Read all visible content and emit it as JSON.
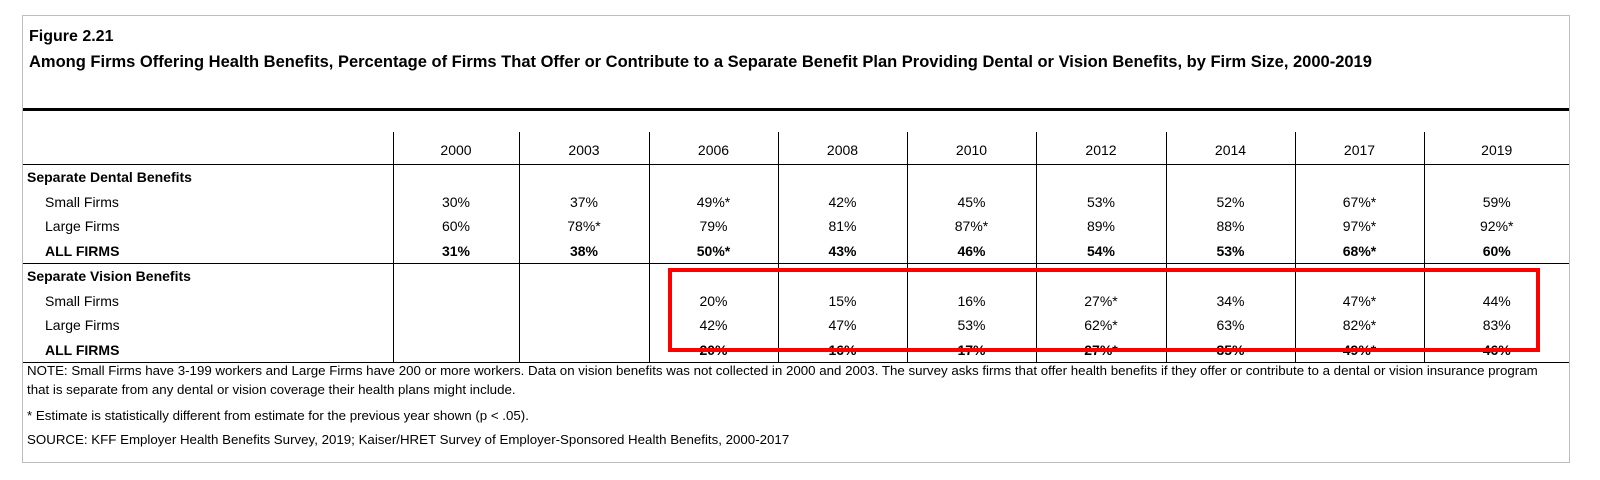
{
  "figure": {
    "label": "Figure 2.21",
    "title": "Among Firms Offering Health Benefits, Percentage of Firms That Offer or Contribute to a Separate Benefit Plan Providing Dental or Vision Benefits, by Firm Size, 2000-2019"
  },
  "table": {
    "years": [
      "2000",
      "2003",
      "2006",
      "2008",
      "2010",
      "2012",
      "2014",
      "2017",
      "2019"
    ],
    "dental": {
      "heading": "Separate Dental Benefits",
      "rows": [
        {
          "label": "Small Firms",
          "values": [
            "30%",
            "37%",
            "49%*",
            "42%",
            "45%",
            "53%",
            "52%",
            "67%*",
            "59%"
          ]
        },
        {
          "label": "Large Firms",
          "values": [
            "60%",
            "78%*",
            "79%",
            "81%",
            "87%*",
            "89%",
            "88%",
            "97%*",
            "92%*"
          ]
        },
        {
          "label": "ALL FIRMS",
          "values": [
            "31%",
            "38%",
            "50%*",
            "43%",
            "46%",
            "54%",
            "53%",
            "68%*",
            "60%"
          ]
        }
      ]
    },
    "vision": {
      "heading": "Separate Vision Benefits",
      "rows": [
        {
          "label": "Small Firms",
          "values": [
            "",
            "",
            "20%",
            "15%",
            "16%",
            "27%*",
            "34%",
            "47%*",
            "44%"
          ]
        },
        {
          "label": "Large Firms",
          "values": [
            "",
            "",
            "42%",
            "47%",
            "53%",
            "62%*",
            "63%",
            "82%*",
            "83%"
          ]
        },
        {
          "label": "ALL FIRMS",
          "values": [
            "",
            "",
            "20%",
            "16%",
            "17%",
            "27%*",
            "35%",
            "49%*",
            "46%"
          ]
        }
      ]
    }
  },
  "notes": {
    "note": "NOTE: Small Firms have 3-199 workers and Large Firms have 200 or more workers. Data on vision benefits was not collected in 2000 and 2003. The survey asks firms that offer health benefits if they offer or contribute to a dental or vision insurance program that is separate from any dental or vision coverage their health plans might include.",
    "footnote": "* Estimate is statistically different from estimate for the previous year shown (p < .05).",
    "source": "SOURCE: KFF Employer Health Benefits Survey, 2019; Kaiser/HRET Survey of Employer-Sponsored Health Benefits, 2000-2017"
  },
  "colors": {
    "highlight": "#ff0000"
  }
}
